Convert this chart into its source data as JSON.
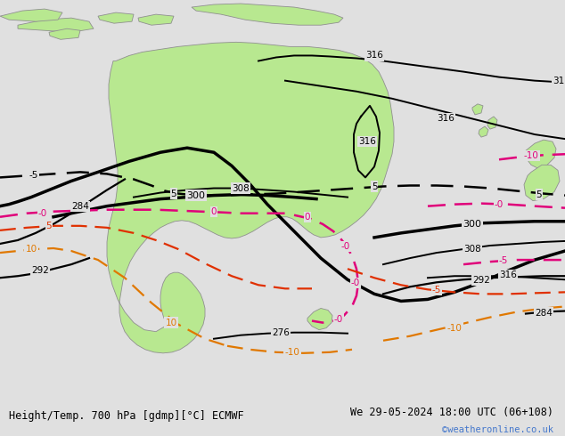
{
  "title_left": "Height/Temp. 700 hPa [gdmp][°C] ECMWF",
  "title_right": "We 29-05-2024 18:00 UTC (06+108)",
  "credit": "©weatheronline.co.uk",
  "bg_color": "#e0e0e0",
  "land_color": "#b8e890",
  "fig_width": 6.34,
  "fig_height": 4.9,
  "dpi": 100
}
